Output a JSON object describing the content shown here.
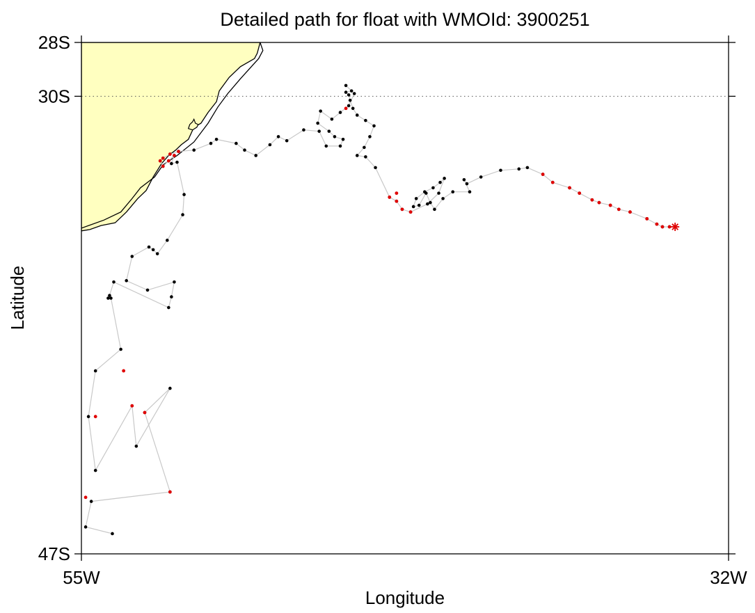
{
  "title": "Detailed path for float with WMOId: 3900251",
  "x_axis": {
    "label": "Longitude",
    "ticks": [
      {
        "lon": -55,
        "label": "55W"
      },
      {
        "lon": -32,
        "label": "32W"
      }
    ]
  },
  "y_axis": {
    "label": "Latitude",
    "ticks": [
      {
        "lat": -28,
        "label": "28S"
      },
      {
        "lat": -30,
        "label": "30S"
      },
      {
        "lat": -47,
        "label": "47S"
      }
    ]
  },
  "colors": {
    "land": "#ffffc0",
    "coast": "#000000",
    "track": "#c8c8c8",
    "point": "#000000",
    "highlight": "#e00000",
    "grid": "#555555"
  },
  "chart_data": {
    "type": "scatter",
    "xlim": [
      -55,
      -32
    ],
    "ylim": [
      -47,
      -28
    ],
    "grid": "dotted line at 30S",
    "track": [
      [
        -34.1,
        -34.85
      ],
      [
        -34.35,
        -34.85
      ],
      [
        -34.55,
        -34.75
      ],
      [
        -34.9,
        -34.55
      ],
      [
        -35.5,
        -34.3
      ],
      [
        -35.9,
        -34.2
      ],
      [
        -36.2,
        -34.05
      ],
      [
        -36.6,
        -33.95
      ],
      [
        -36.85,
        -33.85
      ],
      [
        -37.3,
        -33.6
      ],
      [
        -37.65,
        -33.4
      ],
      [
        -38.25,
        -33.2
      ],
      [
        -38.6,
        -32.9
      ],
      [
        -39.15,
        -32.65
      ],
      [
        -39.45,
        -32.7
      ],
      [
        -40.1,
        -32.75
      ],
      [
        -40.8,
        -33.0
      ],
      [
        -41.3,
        -33.25
      ],
      [
        -41.4,
        -33.1
      ],
      [
        -41.2,
        -33.55
      ],
      [
        -41.8,
        -33.55
      ],
      [
        -42.15,
        -33.8
      ],
      [
        -42.45,
        -34.2
      ],
      [
        -42.6,
        -33.95
      ],
      [
        -42.75,
        -33.6
      ],
      [
        -43.0,
        -34.05
      ],
      [
        -43.2,
        -34.1
      ],
      [
        -43.1,
        -33.8
      ],
      [
        -42.8,
        -33.55
      ],
      [
        -42.5,
        -33.4
      ],
      [
        -42.25,
        -33.2
      ],
      [
        -42.1,
        -33.05
      ],
      [
        -42.3,
        -33.6
      ],
      [
        -42.7,
        -34.0
      ],
      [
        -43.3,
        -34.3
      ],
      [
        -43.6,
        -34.2
      ],
      [
        -43.8,
        -33.9
      ],
      [
        -44.05,
        -33.75
      ],
      [
        -44.55,
        -32.65
      ],
      [
        -44.9,
        -32.25
      ],
      [
        -45.2,
        -32.2
      ],
      [
        -44.95,
        -31.9
      ],
      [
        -44.75,
        -31.5
      ],
      [
        -44.6,
        -31.1
      ],
      [
        -44.9,
        -30.9
      ],
      [
        -45.2,
        -30.7
      ],
      [
        -45.35,
        -30.45
      ],
      [
        -45.45,
        -30.15
      ],
      [
        -45.5,
        -29.95
      ],
      [
        -45.6,
        -29.85
      ],
      [
        -45.4,
        -29.8
      ],
      [
        -45.6,
        -29.6
      ],
      [
        -45.3,
        -29.9
      ],
      [
        -45.5,
        -30.35
      ],
      [
        -45.8,
        -30.6
      ],
      [
        -46.1,
        -30.85
      ],
      [
        -46.5,
        -30.55
      ],
      [
        -46.6,
        -31.0
      ],
      [
        -46.2,
        -31.3
      ],
      [
        -46.0,
        -31.5
      ],
      [
        -45.7,
        -31.6
      ],
      [
        -45.8,
        -31.85
      ],
      [
        -46.3,
        -31.85
      ],
      [
        -46.55,
        -31.3
      ],
      [
        -47.1,
        -31.25
      ],
      [
        -47.7,
        -31.65
      ],
      [
        -48.0,
        -31.5
      ],
      [
        -48.3,
        -31.8
      ],
      [
        -48.8,
        -32.2
      ],
      [
        -49.2,
        -32.0
      ],
      [
        -49.5,
        -31.75
      ],
      [
        -50.2,
        -31.6
      ],
      [
        -50.4,
        -31.75
      ],
      [
        -51.0,
        -32.0
      ],
      [
        -51.55,
        -32.05
      ],
      [
        -51.85,
        -32.15
      ],
      [
        -52.1,
        -32.3
      ],
      [
        -52.2,
        -32.4
      ],
      [
        -52.1,
        -32.6
      ],
      [
        -51.9,
        -32.4
      ],
      [
        -51.7,
        -32.2
      ],
      [
        -51.8,
        -32.5
      ],
      [
        -51.6,
        -32.45
      ],
      [
        -51.35,
        -33.65
      ],
      [
        -51.4,
        -34.4
      ],
      [
        -51.95,
        -35.35
      ],
      [
        -52.3,
        -35.85
      ],
      [
        -52.45,
        -35.7
      ],
      [
        -52.6,
        -35.6
      ],
      [
        -53.2,
        -35.95
      ],
      [
        -53.4,
        -36.85
      ],
      [
        -52.65,
        -37.2
      ],
      [
        -51.7,
        -36.9
      ],
      [
        -51.8,
        -37.45
      ],
      [
        -51.9,
        -37.85
      ],
      [
        -53.85,
        -36.9
      ],
      [
        -54.0,
        -37.4
      ],
      [
        -54.05,
        -37.5
      ],
      [
        -53.95,
        -37.5
      ],
      [
        -53.6,
        -39.4
      ],
      [
        -54.5,
        -40.2
      ],
      [
        -54.75,
        -41.9
      ],
      [
        -54.5,
        -43.9
      ],
      [
        -53.2,
        -41.5
      ],
      [
        -53.05,
        -43.0
      ],
      [
        -51.85,
        -40.85
      ],
      [
        -52.75,
        -41.75
      ],
      [
        -51.85,
        -44.7
      ],
      [
        -54.65,
        -45.05
      ],
      [
        -54.85,
        -46.0
      ],
      [
        -53.9,
        -46.25
      ]
    ],
    "highlighted": [
      [
        -34.1,
        -34.85
      ],
      [
        -34.35,
        -34.85
      ],
      [
        -34.55,
        -34.75
      ],
      [
        -34.9,
        -34.55
      ],
      [
        -35.5,
        -34.3
      ],
      [
        -35.9,
        -34.2
      ],
      [
        -36.2,
        -34.05
      ],
      [
        -36.6,
        -33.95
      ],
      [
        -36.85,
        -33.85
      ],
      [
        -37.3,
        -33.6
      ],
      [
        -37.65,
        -33.4
      ],
      [
        -38.25,
        -33.2
      ],
      [
        -38.6,
        -32.9
      ],
      [
        -43.3,
        -34.3
      ],
      [
        -43.6,
        -34.2
      ],
      [
        -43.8,
        -33.9
      ],
      [
        -43.8,
        -33.6
      ],
      [
        -44.05,
        -33.75
      ],
      [
        -45.6,
        -30.45
      ],
      [
        -51.55,
        -32.05
      ],
      [
        -51.85,
        -32.15
      ],
      [
        -52.1,
        -32.3
      ],
      [
        -52.2,
        -32.4
      ],
      [
        -52.1,
        -32.6
      ],
      [
        -51.9,
        -32.4
      ],
      [
        -51.7,
        -32.2
      ],
      [
        -53.5,
        -40.2
      ],
      [
        -54.5,
        -41.9
      ],
      [
        -53.2,
        -41.5
      ],
      [
        -52.75,
        -41.75
      ],
      [
        -51.85,
        -44.7
      ],
      [
        -54.85,
        -44.9
      ]
    ],
    "last_position": [
      -33.9,
      -34.85
    ],
    "land_polygon": [
      [
        -55,
        -28
      ],
      [
        -48.65,
        -28
      ],
      [
        -48.75,
        -28.4
      ],
      [
        -48.85,
        -28.6
      ],
      [
        -49.35,
        -28.9
      ],
      [
        -49.75,
        -29.3
      ],
      [
        -50.1,
        -29.8
      ],
      [
        -50.2,
        -30.2
      ],
      [
        -50.5,
        -30.6
      ],
      [
        -50.75,
        -31.0
      ],
      [
        -51.0,
        -31.15
      ],
      [
        -51.2,
        -31.6
      ],
      [
        -51.45,
        -31.8
      ],
      [
        -51.65,
        -32.0
      ],
      [
        -51.9,
        -32.2
      ],
      [
        -52.15,
        -32.5
      ],
      [
        -52.45,
        -33.0
      ],
      [
        -52.7,
        -33.5
      ],
      [
        -53.0,
        -33.8
      ],
      [
        -53.4,
        -34.3
      ],
      [
        -53.8,
        -34.7
      ],
      [
        -54.3,
        -34.8
      ],
      [
        -54.7,
        -34.95
      ],
      [
        -55,
        -35.0
      ]
    ],
    "coast_line": [
      [
        -48.65,
        -28
      ],
      [
        -48.55,
        -28.3
      ],
      [
        -48.7,
        -28.6
      ],
      [
        -49.35,
        -29.35
      ],
      [
        -49.8,
        -29.9
      ],
      [
        -50.15,
        -30.4
      ],
      [
        -50.5,
        -31.0
      ],
      [
        -51.0,
        -31.7
      ],
      [
        -51.6,
        -32.2
      ],
      [
        -52.1,
        -32.55
      ],
      [
        -52.4,
        -33.0
      ],
      [
        -52.9,
        -33.4
      ],
      [
        -53.2,
        -33.8
      ],
      [
        -53.6,
        -34.3
      ],
      [
        -54.2,
        -34.6
      ],
      [
        -55,
        -34.9
      ]
    ],
    "lagoon": [
      [
        -51.0,
        -30.85
      ],
      [
        -50.95,
        -31.0
      ],
      [
        -50.85,
        -31.05
      ],
      [
        -50.9,
        -31.15
      ],
      [
        -51.05,
        -31.25
      ],
      [
        -51.2,
        -31.2
      ],
      [
        -51.15,
        -31.05
      ],
      [
        -51.05,
        -30.95
      ]
    ]
  }
}
